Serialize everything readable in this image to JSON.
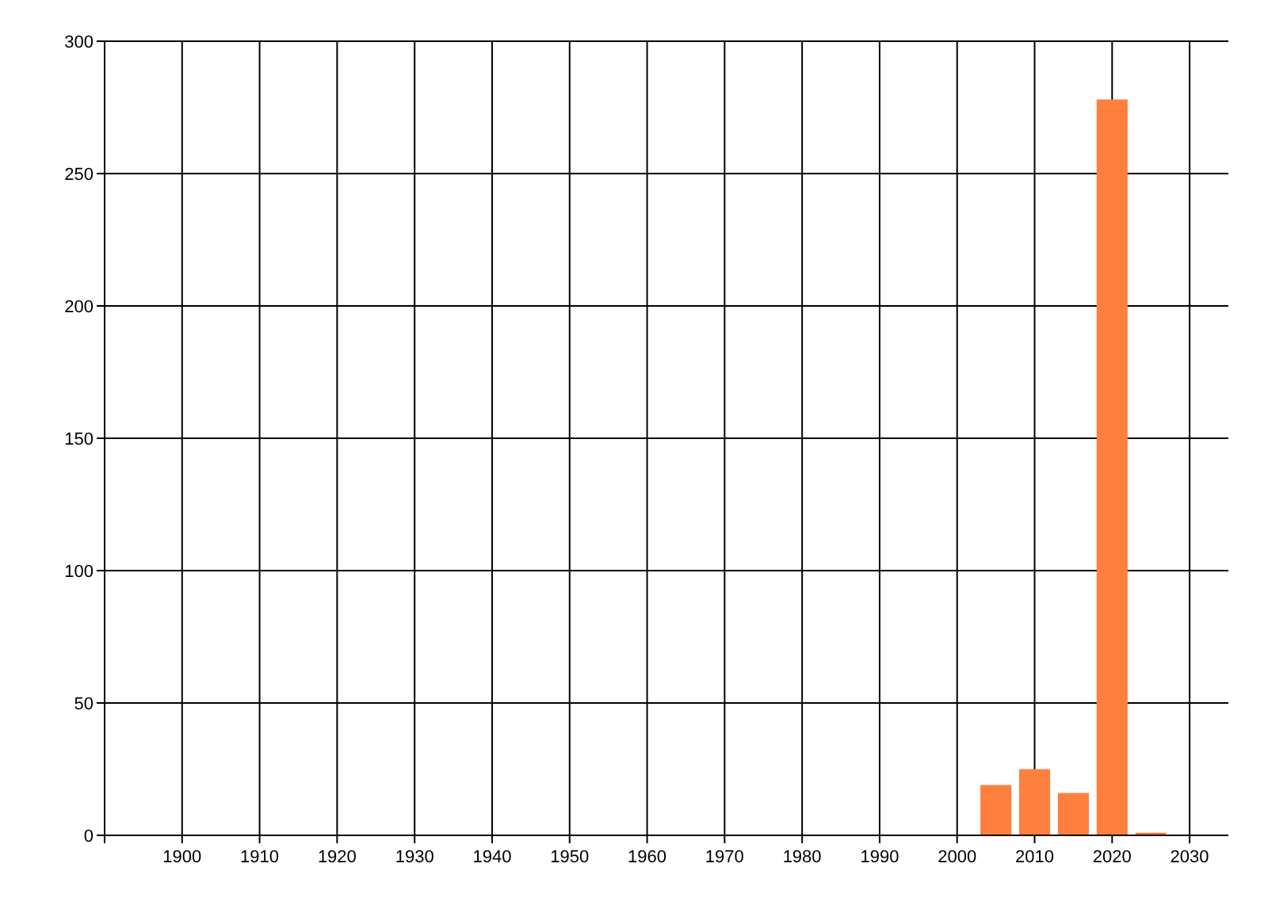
{
  "chart_data": {
    "type": "bar",
    "x": [
      2005,
      2010,
      2015,
      2020,
      2025
    ],
    "values": [
      19,
      25,
      16,
      278,
      1
    ],
    "color": "#ff7f3f",
    "xlim": [
      1890,
      2035
    ],
    "xticks": [
      1900,
      1910,
      1920,
      1930,
      1940,
      1950,
      1960,
      1970,
      1980,
      1990,
      2000,
      2010,
      2020,
      2030
    ],
    "ylim": [
      0,
      300
    ],
    "yticks": [
      0,
      50,
      100,
      150,
      200,
      250,
      300
    ],
    "grid": true
  }
}
